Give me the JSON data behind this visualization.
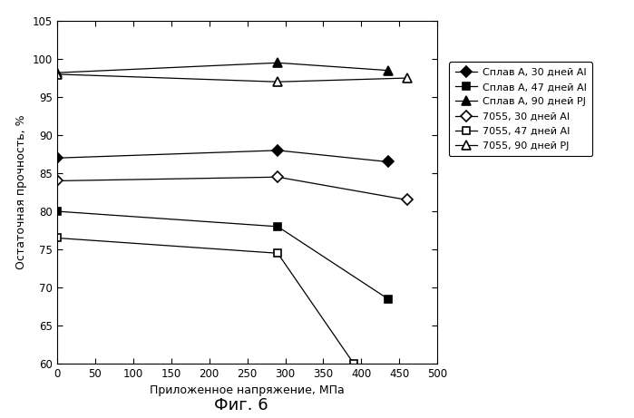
{
  "series": [
    {
      "label": "Сплав А, 30 дней AI",
      "x": [
        0,
        290,
        435
      ],
      "y": [
        87,
        88,
        86.5
      ],
      "color": "#000000",
      "marker": "D",
      "marker_filled": true,
      "markersize": 6,
      "linestyle": "-"
    },
    {
      "label": "Сплав А, 47 дней AI",
      "x": [
        0,
        290,
        435
      ],
      "y": [
        80,
        78,
        68.5
      ],
      "color": "#000000",
      "marker": "s",
      "marker_filled": true,
      "markersize": 6,
      "linestyle": "-"
    },
    {
      "label": "Сплав А, 90 дней PJ",
      "x": [
        0,
        290,
        435
      ],
      "y": [
        98.2,
        99.5,
        98.5
      ],
      "color": "#000000",
      "marker": "^",
      "marker_filled": true,
      "markersize": 7,
      "linestyle": "-"
    },
    {
      "label": "7055, 30 дней AI",
      "x": [
        0,
        290,
        460
      ],
      "y": [
        84,
        84.5,
        81.5
      ],
      "color": "#000000",
      "marker": "D",
      "marker_filled": false,
      "markersize": 6,
      "linestyle": "-"
    },
    {
      "label": "7055, 47 дней AI",
      "x": [
        0,
        290,
        390
      ],
      "y": [
        76.5,
        74.5,
        60
      ],
      "color": "#000000",
      "marker": "s",
      "marker_filled": false,
      "markersize": 6,
      "linestyle": "-"
    },
    {
      "label": "7055, 90 дней PJ",
      "x": [
        0,
        290,
        460
      ],
      "y": [
        98.0,
        97.0,
        97.5
      ],
      "color": "#000000",
      "marker": "^",
      "marker_filled": false,
      "markersize": 7,
      "linestyle": "-"
    }
  ],
  "xlabel": "Приложенное напряжение, МПа",
  "ylabel": "Остаточная прочность, %",
  "caption": "Фиг. 6",
  "xlim": [
    0,
    500
  ],
  "ylim": [
    60,
    105
  ],
  "xticks": [
    0,
    50,
    100,
    150,
    200,
    250,
    300,
    350,
    400,
    450,
    500
  ],
  "yticks": [
    60,
    65,
    70,
    75,
    80,
    85,
    90,
    95,
    100,
    105
  ],
  "background_color": "#ffffff",
  "legend_fontsize": 8,
  "axis_fontsize": 9,
  "tick_fontsize": 8.5,
  "caption_fontsize": 13
}
